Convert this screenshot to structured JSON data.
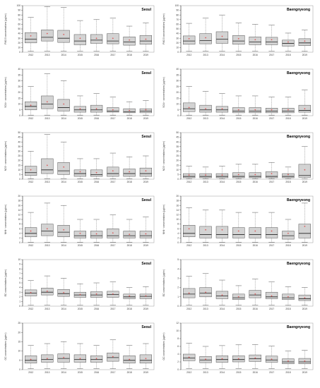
{
  "figure": {
    "x_categories": [
      "2012",
      "2013",
      "2014",
      "2015",
      "2016",
      "2017",
      "2018",
      "2019"
    ],
    "colors": {
      "box_fill": "#d3d3d3",
      "box_stroke": "#555555",
      "median": "#222222",
      "mean": "#e03030",
      "axis": "#333333"
    }
  },
  "chart_data": [
    {
      "type": "box",
      "site": "Seoul",
      "ylabel": "PM2.5 concentrations (µg/m³)",
      "ylim": [
        0,
        100
      ],
      "yticks": [
        0,
        10,
        20,
        30,
        40,
        50,
        60,
        70,
        80,
        90,
        100
      ],
      "x": [
        "2012",
        "2013",
        "2014",
        "2015",
        "2016",
        "2017",
        "2018",
        "2019"
      ],
      "min": [
        2,
        2,
        2,
        2,
        2,
        2,
        2,
        2
      ],
      "q1": [
        20,
        24,
        21,
        16,
        19,
        18,
        15,
        17
      ],
      "median": [
        28,
        32,
        30,
        24,
        26,
        24,
        22,
        24
      ],
      "q3": [
        42,
        48,
        47,
        38,
        38,
        40,
        33,
        36
      ],
      "max": [
        75,
        98,
        96,
        68,
        70,
        73,
        56,
        63
      ],
      "mean": [
        35,
        40,
        38,
        30,
        30,
        30,
        26,
        28
      ]
    },
    {
      "type": "box",
      "site": "Baengnyeong",
      "ylabel": "PM2.5 concentrations (µg/m³)",
      "ylim": [
        0,
        100
      ],
      "yticks": [
        0,
        10,
        20,
        30,
        40,
        50,
        60,
        70,
        80,
        90,
        100
      ],
      "x": [
        "2012",
        "2013",
        "2014",
        "2015",
        "2016",
        "2017",
        "2018",
        "2019"
      ],
      "min": [
        2,
        2,
        2,
        2,
        2,
        2,
        2,
        2
      ],
      "q1": [
        17,
        18,
        19,
        17,
        16,
        16,
        13,
        14
      ],
      "median": [
        24,
        25,
        28,
        24,
        22,
        22,
        19,
        20
      ],
      "q3": [
        35,
        40,
        44,
        36,
        33,
        32,
        26,
        29
      ],
      "max": [
        62,
        73,
        80,
        63,
        60,
        58,
        41,
        48
      ],
      "mean": [
        29,
        31,
        34,
        29,
        27,
        27,
        22,
        24
      ]
    },
    {
      "type": "box",
      "site": "Seoul",
      "ylabel": "SO4²⁻ concentrations (µg/m³)",
      "ylim": [
        0,
        40
      ],
      "yticks": [
        0,
        5,
        10,
        15,
        20,
        25,
        30,
        35,
        40
      ],
      "x": [
        "2012",
        "2013",
        "2014",
        "2015",
        "2016",
        "2017",
        "2018",
        "2019"
      ],
      "min": [
        0.5,
        0.5,
        0.5,
        0.5,
        0.5,
        0.5,
        0.5,
        0.5
      ],
      "q1": [
        5,
        6,
        4,
        3,
        3,
        3,
        2.5,
        2.5
      ],
      "median": [
        8,
        10,
        7,
        5,
        5,
        4,
        3.5,
        4
      ],
      "q3": [
        12,
        17,
        14,
        8,
        9,
        7,
        6,
        6
      ],
      "max": [
        25,
        36,
        30,
        17,
        19,
        16,
        12,
        13
      ],
      "mean": [
        9,
        12,
        10,
        6,
        6,
        5,
        4.5,
        5
      ]
    },
    {
      "type": "box",
      "site": "Baengnyeong",
      "ylabel": "SO4²⁻ concentrations (µg/m³)",
      "ylim": [
        0,
        40
      ],
      "yticks": [
        0,
        5,
        10,
        15,
        20,
        25,
        30,
        35,
        40
      ],
      "x": [
        "2012",
        "2013",
        "2014",
        "2015",
        "2016",
        "2017",
        "2018",
        "2019"
      ],
      "min": [
        0.5,
        0.5,
        0.5,
        0.5,
        0.5,
        0.5,
        0.5,
        0.5
      ],
      "q1": [
        3.5,
        3,
        3,
        2.5,
        2.5,
        2.5,
        2.5,
        3
      ],
      "median": [
        6,
        5,
        5,
        4,
        4,
        4,
        4,
        4.5
      ],
      "q3": [
        11,
        9,
        8,
        7,
        7,
        6.5,
        6.5,
        9
      ],
      "max": [
        25,
        21,
        19,
        17,
        17,
        16,
        16,
        22
      ],
      "mean": [
        7,
        6,
        6,
        5,
        5,
        5,
        5,
        6
      ]
    },
    {
      "type": "box",
      "site": "Seoul",
      "ylabel": "NO3⁻ concentrations (µg/m³)",
      "ylim": [
        0,
        50
      ],
      "yticks": [
        0,
        5,
        10,
        15,
        20,
        25,
        30,
        35,
        40,
        45,
        50
      ],
      "x": [
        "2012",
        "2013",
        "2014",
        "2015",
        "2016",
        "2017",
        "2018",
        "2019"
      ],
      "min": [
        0.5,
        0.5,
        0.5,
        0.5,
        0.5,
        0.5,
        0.5,
        0.5
      ],
      "q1": [
        4,
        6,
        5,
        3,
        3,
        3,
        3,
        3
      ],
      "median": [
        7,
        10,
        9,
        6,
        5,
        6,
        6,
        6
      ],
      "q3": [
        14,
        22,
        18,
        10,
        10,
        13,
        11,
        12
      ],
      "max": [
        30,
        48,
        40,
        22,
        22,
        28,
        24,
        25
      ],
      "mean": [
        10,
        15,
        13,
        8,
        7,
        9,
        8,
        9
      ]
    },
    {
      "type": "box",
      "site": "Baengnyeong",
      "ylabel": "NO3⁻ concentrations (µg/m³)",
      "ylim": [
        0,
        50
      ],
      "yticks": [
        0,
        5,
        10,
        15,
        20,
        25,
        30,
        35,
        40,
        45,
        50
      ],
      "x": [
        "2012",
        "2013",
        "2014",
        "2015",
        "2016",
        "2017",
        "2018",
        "2019"
      ],
      "min": [
        0.3,
        0.3,
        0.3,
        0.3,
        0.3,
        0.3,
        0.3,
        0.3
      ],
      "q1": [
        1.5,
        1.5,
        1.5,
        1.5,
        1.5,
        1.5,
        1.5,
        2
      ],
      "median": [
        3,
        3,
        3,
        3,
        3,
        3,
        3,
        4
      ],
      "q3": [
        6,
        6,
        6,
        7,
        7,
        8,
        6,
        16
      ],
      "max": [
        14,
        13,
        14,
        16,
        16,
        18,
        13,
        35
      ],
      "mean": [
        4.5,
        4.5,
        4.5,
        5,
        5,
        6,
        5,
        10
      ]
    },
    {
      "type": "box",
      "site": "Seoul",
      "ylabel": "NH4⁺ concentrations (µg/m³)",
      "ylim": [
        0,
        20
      ],
      "yticks": [
        0,
        2,
        4,
        6,
        8,
        10,
        12,
        14,
        16,
        18,
        20
      ],
      "x": [
        "2012",
        "2013",
        "2014",
        "2015",
        "2016",
        "2017",
        "2018",
        "2019"
      ],
      "min": [
        0.2,
        0.2,
        0.2,
        0.2,
        0.2,
        0.2,
        0.2,
        0.2
      ],
      "q1": [
        2.5,
        3,
        2.5,
        2,
        2,
        2,
        2,
        2
      ],
      "median": [
        4,
        5,
        4.5,
        3,
        3,
        3,
        3,
        3
      ],
      "q3": [
        6.5,
        8,
        7.5,
        5,
        5,
        6,
        5,
        5
      ],
      "max": [
        13,
        17,
        16,
        10,
        10,
        12,
        10,
        11
      ],
      "mean": [
        5,
        6,
        5.5,
        4,
        3.8,
        4.2,
        3.6,
        3.8
      ]
    },
    {
      "type": "box",
      "site": "Baengnyeong",
      "ylabel": "NH4⁺ concentrations (µg/m³)",
      "ylim": [
        0,
        20
      ],
      "yticks": [
        0,
        2,
        4,
        6,
        8,
        10,
        12,
        14,
        16,
        18,
        20
      ],
      "x": [
        "2012",
        "2013",
        "2014",
        "2015",
        "2016",
        "2017",
        "2018",
        "2019"
      ],
      "min": [
        0.2,
        0.2,
        0.2,
        0.2,
        0.2,
        0.2,
        0.2,
        0.2
      ],
      "q1": [
        2.5,
        2,
        2,
        2,
        2,
        2,
        1.5,
        2
      ],
      "median": [
        4,
        3.5,
        3.5,
        3.5,
        3.5,
        3.5,
        3,
        4
      ],
      "q3": [
        7.5,
        7,
        7,
        6.5,
        6.5,
        6.5,
        5,
        8
      ],
      "max": [
        15,
        14,
        14,
        13,
        13,
        13,
        10,
        17
      ],
      "mean": [
        6,
        5.5,
        5.5,
        5,
        5,
        5,
        4,
        7
      ]
    },
    {
      "type": "box",
      "site": "Seoul",
      "ylabel": "EC concentrations (µg/m³)",
      "ylim": [
        0,
        10
      ],
      "yticks": [
        0,
        1,
        2,
        3,
        4,
        5,
        6,
        7,
        8,
        9,
        10
      ],
      "x": [
        "2012",
        "2013",
        "2014",
        "2015",
        "2016",
        "2017",
        "2018",
        "2019"
      ],
      "min": [
        0.2,
        0.2,
        0.2,
        0.2,
        0.2,
        0.2,
        0.2,
        0.2
      ],
      "q1": [
        2.2,
        2.4,
        2.1,
        1.9,
        1.9,
        1.9,
        1.6,
        1.6
      ],
      "median": [
        2.8,
        3.0,
        2.7,
        2.4,
        2.4,
        2.5,
        2.0,
        2.1
      ],
      "q3": [
        3.5,
        3.9,
        3.6,
        3.0,
        3.1,
        3.2,
        2.6,
        2.6
      ],
      "max": [
        5.5,
        6.5,
        6.0,
        4.8,
        5.0,
        5.2,
        4.0,
        4.2
      ],
      "mean": [
        2.9,
        3.2,
        2.9,
        2.5,
        2.6,
        2.6,
        2.2,
        2.2
      ]
    },
    {
      "type": "box",
      "site": "Baengnyeong",
      "ylabel": "EC concentrations (µg/m³)",
      "ylim": [
        0,
        5
      ],
      "yticks": [
        0,
        1,
        2,
        3,
        4,
        5
      ],
      "x": [
        "2012",
        "2013",
        "2014",
        "2015",
        "2016",
        "2017",
        "2018",
        "2019"
      ],
      "min": [
        0.1,
        0.1,
        0.1,
        0.1,
        0.1,
        0.1,
        0.1,
        0.1
      ],
      "q1": [
        0.9,
        1.0,
        0.8,
        0.7,
        0.9,
        0.8,
        0.7,
        0.6
      ],
      "median": [
        1.3,
        1.4,
        1.1,
        0.9,
        1.2,
        1.0,
        0.9,
        0.8
      ],
      "q3": [
        1.9,
        2.0,
        1.6,
        1.3,
        1.7,
        1.5,
        1.3,
        1.2
      ],
      "max": [
        3.2,
        3.5,
        2.8,
        2.2,
        2.9,
        2.6,
        2.1,
        2.0
      ],
      "mean": [
        1.4,
        1.5,
        1.2,
        1.0,
        1.3,
        1.1,
        1.0,
        0.9
      ]
    },
    {
      "type": "box",
      "site": "Seoul",
      "ylabel": "OC concentrations (µg/m³)",
      "ylim": [
        0,
        25
      ],
      "yticks": [
        0,
        5,
        10,
        15,
        20,
        25
      ],
      "x": [
        "2012",
        "2013",
        "2014",
        "2015",
        "2016",
        "2017",
        "2018",
        "2019"
      ],
      "min": [
        0.5,
        0.5,
        0.5,
        0.5,
        0.5,
        0.5,
        0.5,
        0.5
      ],
      "q1": [
        3.5,
        4,
        4,
        4,
        4,
        4.5,
        3.5,
        3.5
      ],
      "median": [
        5,
        5.5,
        6,
        5.5,
        5.5,
        6.5,
        5,
        5
      ],
      "q3": [
        7.5,
        8,
        8.5,
        8,
        7.5,
        9,
        7.5,
        8
      ],
      "max": [
        13,
        14,
        15,
        14,
        13,
        16,
        13,
        14
      ],
      "mean": [
        5.5,
        6,
        6.5,
        6,
        6,
        7,
        5.5,
        6
      ]
    },
    {
      "type": "box",
      "site": "Baengnyeong",
      "ylabel": "OC concentrations (µg/m³)",
      "ylim": [
        0,
        12
      ],
      "yticks": [
        0,
        2,
        4,
        6,
        8,
        10,
        12
      ],
      "x": [
        "2012",
        "2013",
        "2014",
        "2015",
        "2016",
        "2017",
        "2018",
        "2019"
      ],
      "min": [
        0.3,
        0.3,
        0.3,
        0.3,
        0.3,
        0.3,
        0.3,
        0.3
      ],
      "q1": [
        2.3,
        1.8,
        1.9,
        2.0,
        2.1,
        1.9,
        1.5,
        1.5
      ],
      "median": [
        3.0,
        2.5,
        2.6,
        2.6,
        2.8,
        2.5,
        2.0,
        2.0
      ],
      "q3": [
        4.0,
        3.4,
        3.6,
        3.6,
        3.8,
        3.5,
        2.8,
        2.9
      ],
      "max": [
        6.8,
        6.0,
        6.2,
        6.4,
        6.5,
        6.1,
        4.8,
        5.0
      ],
      "mean": [
        3.2,
        2.7,
        2.8,
        2.8,
        3.0,
        2.7,
        2.2,
        2.2
      ]
    }
  ]
}
